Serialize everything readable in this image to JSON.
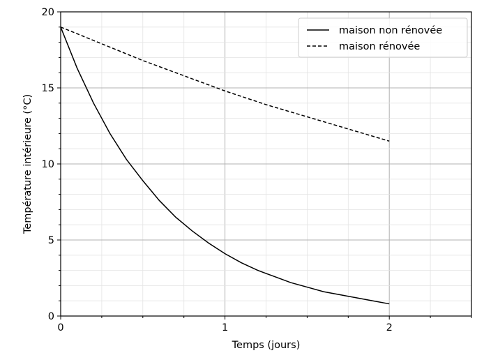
{
  "chart_data": {
    "type": "line",
    "title": "",
    "xlabel": "Temps (jours)",
    "ylabel": "Température intérieure (°C)",
    "xlim": [
      0,
      2.5
    ],
    "ylim": [
      0,
      20
    ],
    "xticks": [
      0,
      1,
      2
    ],
    "xtick_labels": [
      "0",
      "1",
      "2"
    ],
    "yticks": [
      0,
      5,
      10,
      15,
      20
    ],
    "ytick_labels": [
      "0",
      "5",
      "10",
      "15",
      "20"
    ],
    "x_minor_step": 0.25,
    "y_minor_step": 1,
    "grid": true,
    "legend_position": "top-right",
    "series": [
      {
        "name": "maison non rénovée",
        "style": "solid",
        "color": "#000000",
        "x": [
          0,
          0.1,
          0.2,
          0.3,
          0.4,
          0.5,
          0.6,
          0.7,
          0.8,
          0.9,
          1.0,
          1.1,
          1.2,
          1.3,
          1.4,
          1.5,
          1.6,
          1.7,
          1.8,
          1.9,
          2.0
        ],
        "y": [
          19.0,
          16.3,
          14.0,
          12.0,
          10.3,
          8.9,
          7.6,
          6.5,
          5.6,
          4.8,
          4.1,
          3.5,
          3.0,
          2.6,
          2.2,
          1.9,
          1.6,
          1.4,
          1.2,
          1.0,
          0.8
        ]
      },
      {
        "name": "maison rénovée",
        "style": "dashed",
        "color": "#000000",
        "x": [
          0,
          0.25,
          0.5,
          0.75,
          1.0,
          1.25,
          1.5,
          1.75,
          2.0
        ],
        "y": [
          19.0,
          17.9,
          16.8,
          15.8,
          14.8,
          13.9,
          13.1,
          12.3,
          11.5
        ]
      }
    ]
  }
}
